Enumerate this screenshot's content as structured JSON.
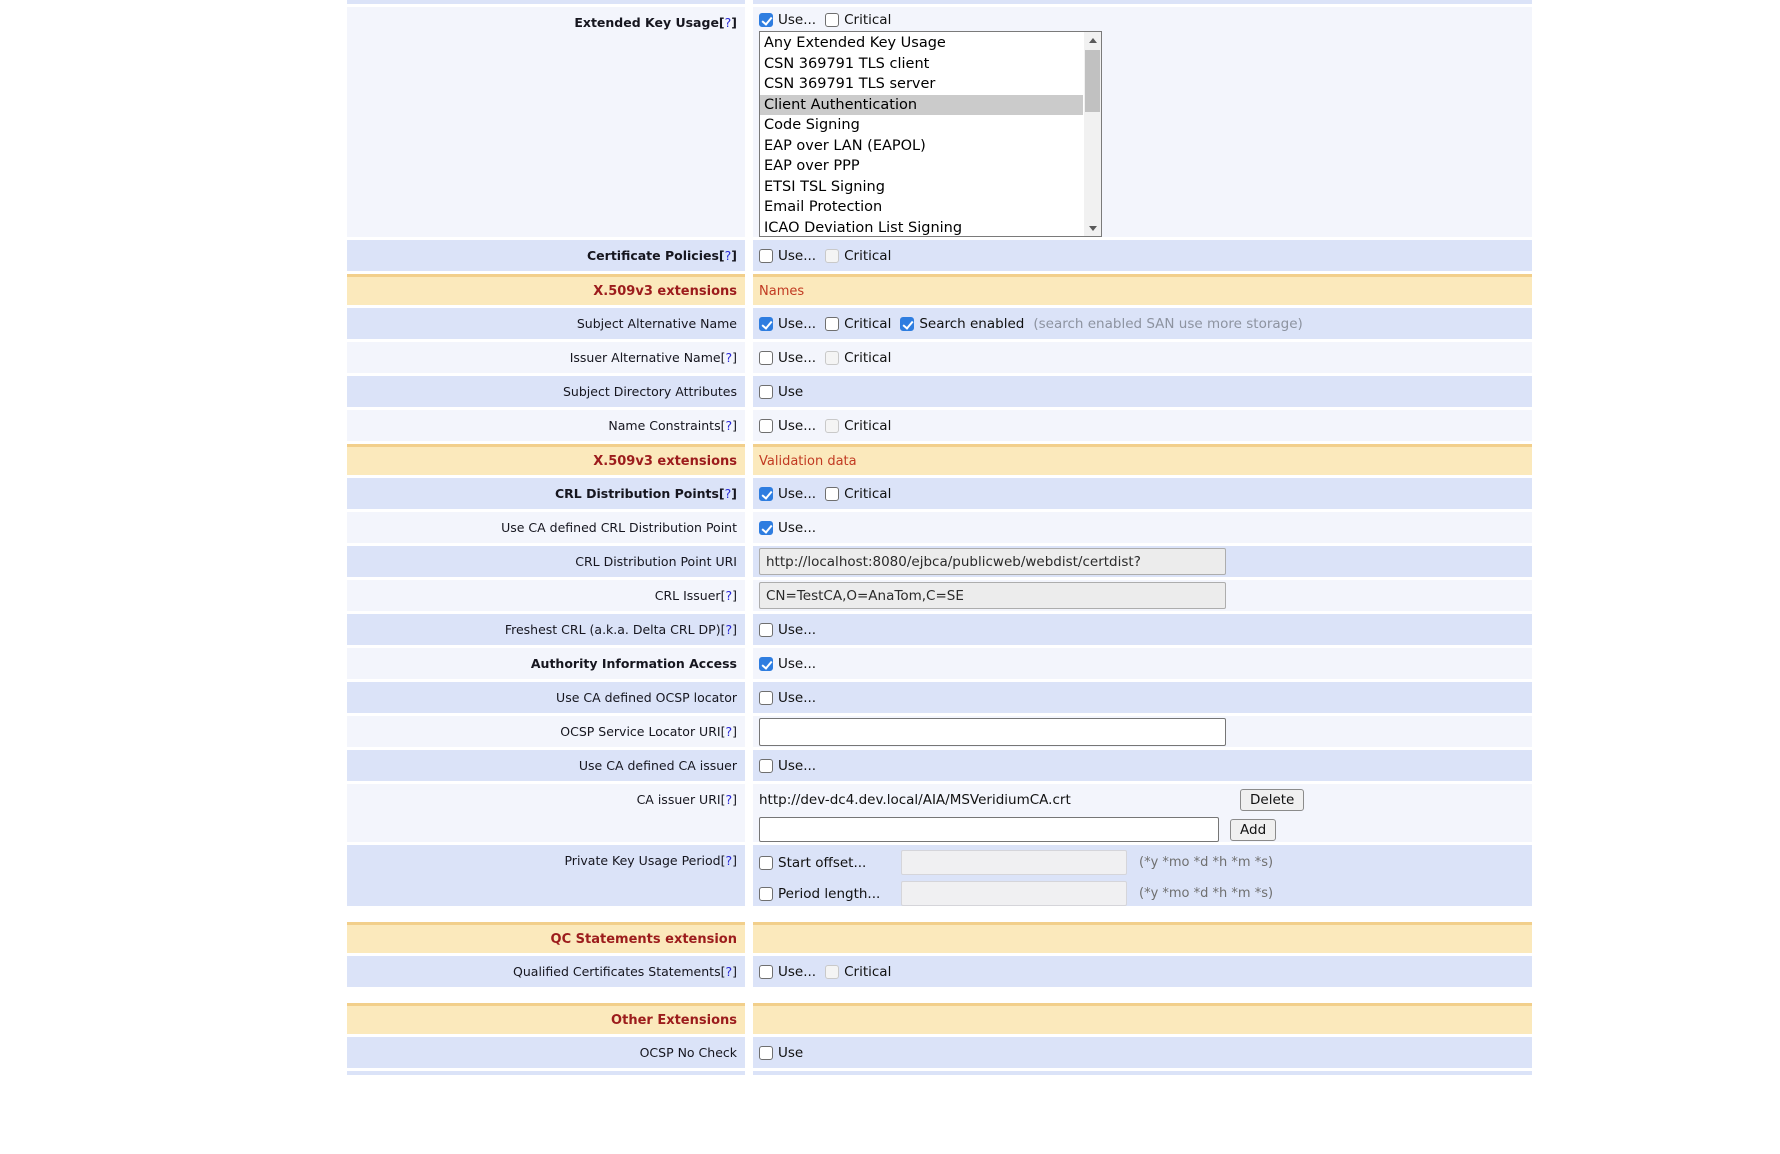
{
  "syms": {
    "lb": "[",
    "q": "?",
    "rb": "]"
  },
  "labels": {
    "use_ellipsis": "Use...",
    "use": "Use",
    "critical": "Critical",
    "search_enabled": "Search enabled",
    "san_note": "(search enabled SAN use more storage)",
    "start_offset": "Start offset...",
    "period_length": "Period length...",
    "time_hint": "(*y *mo *d *h *m *s)",
    "delete": "Delete",
    "add": "Add"
  },
  "rows": {
    "extended_key_usage": "Extended Key Usage",
    "certificate_policies": "Certificate Policies",
    "subject_alternative_name": "Subject Alternative Name",
    "issuer_alternative_name": "Issuer Alternative Name",
    "subject_directory_attributes": "Subject Directory Attributes",
    "name_constraints": "Name Constraints",
    "crl_distribution_points": "CRL Distribution Points",
    "use_ca_defined_crl_distribution_point": "Use CA defined CRL Distribution Point",
    "crl_distribution_point_uri": "CRL Distribution Point URI",
    "crl_issuer": "CRL Issuer",
    "freshest_crl": "Freshest CRL (a.k.a. Delta CRL DP)",
    "authority_information_access": "Authority Information Access",
    "use_ca_defined_ocsp_locator": "Use CA defined OCSP locator",
    "ocsp_service_locator_uri": "OCSP Service Locator URI",
    "use_ca_defined_ca_issuer": "Use CA defined CA issuer",
    "ca_issuer_uri": "CA issuer URI",
    "private_key_usage_period": "Private Key Usage Period",
    "qualified_certificates_statements": "Qualified Certificates Statements",
    "ocsp_no_check": "OCSP No Check"
  },
  "sections": {
    "x509_names": {
      "title": "X.509v3 extensions",
      "subtitle": "Names"
    },
    "x509_validation": {
      "title": "X.509v3 extensions",
      "subtitle": "Validation data"
    },
    "qc_statements": {
      "title": "QC Statements extension",
      "subtitle": ""
    },
    "other_extensions": {
      "title": "Other Extensions",
      "subtitle": ""
    }
  },
  "listbox": {
    "options": [
      "Any Extended Key Usage",
      "CSN 369791 TLS client",
      "CSN 369791 TLS server",
      "Client Authentication",
      "Code Signing",
      "EAP over LAN (EAPOL)",
      "EAP over PPP",
      "ETSI TSL Signing",
      "Email Protection",
      "ICAO Deviation List Signing"
    ],
    "selected": "Client Authentication"
  },
  "values": {
    "crl_dp_uri": "http://localhost:8080/ejbca/publicweb/webdist/certdist?",
    "crl_issuer": "CN=TestCA,O=AnaTom,C=SE",
    "ocsp_service_locator_uri": "",
    "ca_issuer_uri": "http://dev-dc4.dev.local/AIA/MSVeridiumCA.crt",
    "ca_issuer_uri_new": "",
    "start_offset": "",
    "period_length": ""
  },
  "checkbox_states": {
    "extended_key_usage": {
      "use": true,
      "critical": false
    },
    "certificate_policies": {
      "use": false,
      "critical": false
    },
    "subject_alternative_name": {
      "use": true,
      "critical": false,
      "search_enabled": true
    },
    "issuer_alternative_name": {
      "use": false,
      "critical": false
    },
    "subject_directory_attributes": {
      "use": false
    },
    "name_constraints": {
      "use": false,
      "critical": false
    },
    "crl_distribution_points": {
      "use": true,
      "critical": false
    },
    "use_ca_defined_crl_distribution_point": {
      "use": true
    },
    "freshest_crl": {
      "use": false
    },
    "authority_information_access": {
      "use": true
    },
    "use_ca_defined_ocsp_locator": {
      "use": false
    },
    "use_ca_defined_ca_issuer": {
      "use": false
    },
    "private_key_usage_period": {
      "start_offset": false,
      "period_length": false
    },
    "qualified_certificates_statements": {
      "use": false,
      "critical": false
    },
    "ocsp_no_check": {
      "use": false
    }
  },
  "colors": {
    "row_blue": "#dbe3f8",
    "row_light": "#f3f5fc",
    "section_bg": "#fbe9bc",
    "section_border_top": "#f2cf8b",
    "section_title": "#9c1c1c",
    "section_subtitle": "#c13a22",
    "checkbox_checked": "#2e7de0",
    "help_link": "#2b2bd5",
    "selected_option_bg": "#cbcbcb",
    "note_gray": "#8d93a0",
    "hint_gray": "#6f6f6f"
  }
}
